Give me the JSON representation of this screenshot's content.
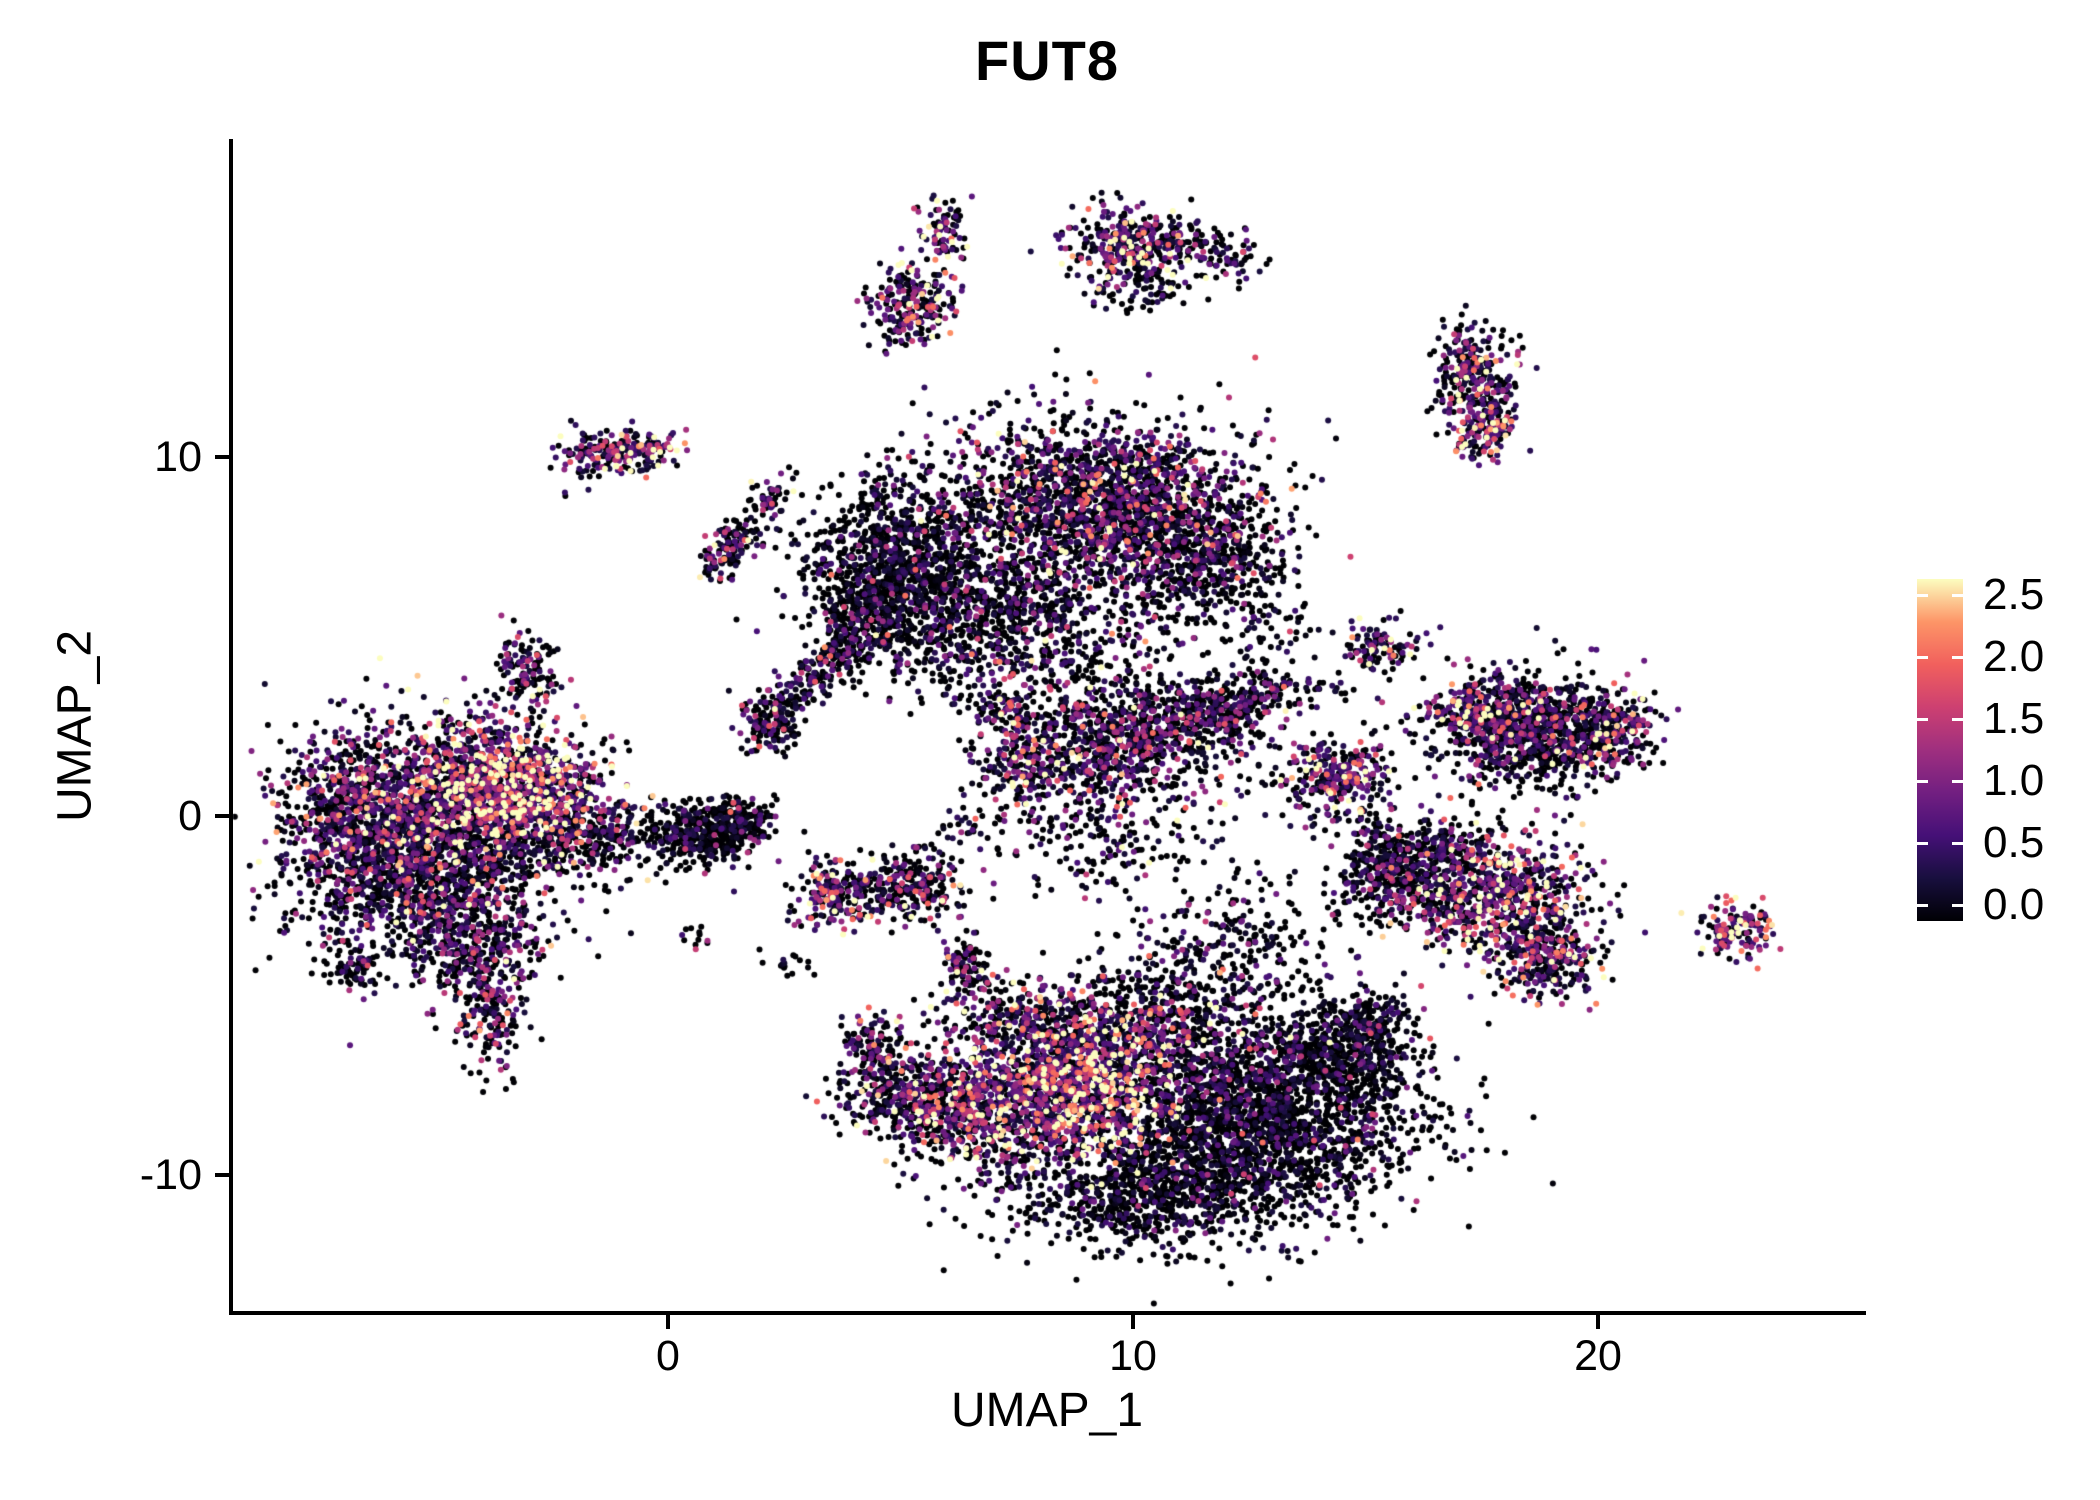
{
  "title": "FUT8",
  "chart_data": {
    "type": "scatter",
    "title": "FUT8",
    "xlabel": "UMAP_1",
    "ylabel": "UMAP_2",
    "xlim": [
      -9.4,
      25.7
    ],
    "ylim": [
      -13.8,
      18.8
    ],
    "grid": false,
    "x_ticks": [
      {
        "value": 0,
        "label": "0"
      },
      {
        "value": 10,
        "label": "10"
      },
      {
        "value": 20,
        "label": "20"
      }
    ],
    "y_ticks": [
      {
        "value": 10,
        "label": "10"
      },
      {
        "value": 0,
        "label": "0"
      },
      {
        "value": -10,
        "label": "-10"
      }
    ],
    "legend": {
      "position": "right",
      "range": [
        0,
        2.5
      ],
      "ticks": [
        {
          "value": 2.5,
          "label": "2.5"
        },
        {
          "value": 2.0,
          "label": "2.0"
        },
        {
          "value": 1.5,
          "label": "1.5"
        },
        {
          "value": 1.0,
          "label": "1.0"
        },
        {
          "value": 0.5,
          "label": "0.5"
        },
        {
          "value": 0.0,
          "label": "0.0"
        }
      ]
    },
    "colormap": {
      "name": "magma",
      "stops": [
        "#000004",
        "#180f3e",
        "#451077",
        "#721f81",
        "#9f2f7f",
        "#cd4071",
        "#f1605d",
        "#fd9567",
        "#fcfdbf"
      ]
    },
    "point_radius": 3,
    "seed": 7,
    "clusters": [
      {
        "x": -4.9,
        "y": 0.3,
        "sx": 1.5,
        "sy": 1.25,
        "n": 1700,
        "m": 0.8
      },
      {
        "x": -3.3,
        "y": 0.7,
        "sx": 0.95,
        "sy": 0.9,
        "n": 850,
        "m": 1.25
      },
      {
        "x": -5.8,
        "y": -1.8,
        "sx": 1.3,
        "sy": 1.0,
        "n": 850,
        "m": 0.55
      },
      {
        "x": -6.9,
        "y": 0.3,
        "sx": 0.6,
        "sy": 0.9,
        "n": 300,
        "m": 0.5
      },
      {
        "x": -4.2,
        "y": -3.4,
        "sx": 0.8,
        "sy": 0.8,
        "n": 380,
        "m": 0.65
      },
      {
        "x": -3.8,
        "y": -5.3,
        "sx": 0.4,
        "sy": 0.9,
        "n": 200,
        "m": 0.7
      },
      {
        "x": -1.6,
        "y": -0.6,
        "sx": 0.8,
        "sy": 0.6,
        "n": 300,
        "m": 0.4
      },
      {
        "x": -6.6,
        "y": -4.2,
        "sx": 0.3,
        "sy": 0.3,
        "n": 50,
        "m": 0.4
      },
      {
        "x": 0.8,
        "y": -0.5,
        "sx": 0.55,
        "sy": 0.45,
        "n": 380,
        "m": 0.3
      },
      {
        "x": 1.6,
        "y": -0.1,
        "sx": 0.35,
        "sy": 0.3,
        "n": 120,
        "m": 0.4
      },
      {
        "x": 2.2,
        "y": 2.5,
        "sx": 0.3,
        "sy": 0.4,
        "n": 120,
        "m": 0.6
      },
      {
        "type": "streak",
        "x1": 2.3,
        "y1": 2.9,
        "x2": 4.3,
        "y2": 5.1,
        "w": 0.28,
        "n": 240,
        "m": 0.55
      },
      {
        "x": 5.0,
        "y": 7.0,
        "sx": 1.1,
        "sy": 1.2,
        "n": 1100,
        "m": 0.35
      },
      {
        "x": 9.3,
        "y": 8.7,
        "sx": 1.6,
        "sy": 1.2,
        "n": 1900,
        "m": 0.65
      },
      {
        "x": 11.5,
        "y": 7.2,
        "sx": 0.9,
        "sy": 0.9,
        "n": 550,
        "m": 0.5
      },
      {
        "x": 7.3,
        "y": 5.6,
        "sx": 1.4,
        "sy": 0.8,
        "n": 550,
        "m": 0.5
      },
      {
        "x": 7.0,
        "y": 4.3,
        "sx": 1.5,
        "sy": 0.7,
        "n": 220,
        "m": 0.45
      },
      {
        "x": 4.2,
        "y": 5.6,
        "sx": 0.5,
        "sy": 0.6,
        "n": 150,
        "m": 0.45
      },
      {
        "x": 9.6,
        "y": 2.0,
        "sx": 1.25,
        "sy": 1.0,
        "n": 900,
        "m": 0.7
      },
      {
        "x": 11.6,
        "y": 2.9,
        "sx": 0.75,
        "sy": 0.6,
        "n": 300,
        "m": 0.6
      },
      {
        "type": "streak",
        "x1": 11.8,
        "y1": 2.6,
        "x2": 13.1,
        "y2": 3.8,
        "w": 0.25,
        "n": 140,
        "m": 0.6
      },
      {
        "x": 7.6,
        "y": 1.3,
        "sx": 0.45,
        "sy": 0.55,
        "n": 160,
        "m": 0.85
      },
      {
        "x": 7.3,
        "y": 2.9,
        "sx": 0.3,
        "sy": 0.35,
        "n": 80,
        "m": 0.6
      },
      {
        "x": 9.5,
        "y": -1.0,
        "sx": 1.2,
        "sy": 0.7,
        "n": 150,
        "m": 0.45
      },
      {
        "x": 3.7,
        "y": -2.2,
        "sx": 0.5,
        "sy": 0.45,
        "n": 230,
        "m": 0.85
      },
      {
        "x": 5.3,
        "y": -2.0,
        "sx": 0.55,
        "sy": 0.5,
        "n": 260,
        "m": 0.6
      },
      {
        "x": 6.4,
        "y": -4.2,
        "sx": 0.3,
        "sy": 0.4,
        "n": 100,
        "m": 0.7
      },
      {
        "x": 8.7,
        "y": -7.5,
        "sx": 1.15,
        "sy": 1.0,
        "n": 1300,
        "m": 1.15
      },
      {
        "x": 6.6,
        "y": -8.3,
        "sx": 0.9,
        "sy": 0.8,
        "n": 600,
        "m": 0.85
      },
      {
        "x": 5.0,
        "y": -7.8,
        "sx": 0.7,
        "sy": 0.6,
        "n": 300,
        "m": 0.7
      },
      {
        "x": 4.4,
        "y": -6.4,
        "sx": 0.35,
        "sy": 0.45,
        "n": 120,
        "m": 0.6
      },
      {
        "x": 12.6,
        "y": -8.4,
        "sx": 1.7,
        "sy": 1.4,
        "n": 2300,
        "m": 0.35
      },
      {
        "x": 10.2,
        "y": -10.5,
        "sx": 1.5,
        "sy": 0.8,
        "n": 800,
        "m": 0.3
      },
      {
        "x": 14.5,
        "y": -6.6,
        "sx": 0.8,
        "sy": 0.7,
        "n": 420,
        "m": 0.35
      },
      {
        "type": "streak",
        "x1": 14.7,
        "y1": -6.2,
        "x2": 15.4,
        "y2": -5.2,
        "w": 0.3,
        "n": 120,
        "m": 0.4
      },
      {
        "x": 10.2,
        "y": -6.0,
        "sx": 1.6,
        "sy": 0.6,
        "n": 420,
        "m": 0.7
      },
      {
        "x": 7.6,
        "y": -5.6,
        "sx": 0.9,
        "sy": 0.55,
        "n": 220,
        "m": 0.7
      },
      {
        "x": 12.3,
        "y": -3.6,
        "sx": 1.2,
        "sy": 1.0,
        "n": 260,
        "m": 0.4
      },
      {
        "x": 10.6,
        "y": -4.8,
        "sx": 0.9,
        "sy": 0.6,
        "n": 150,
        "m": 0.45
      },
      {
        "x": 14.4,
        "y": 1.1,
        "sx": 0.55,
        "sy": 0.55,
        "n": 320,
        "m": 1.0
      },
      {
        "x": 15.3,
        "y": -1.6,
        "sx": 0.5,
        "sy": 0.6,
        "n": 240,
        "m": 0.5
      },
      {
        "type": "streak",
        "x1": 14.9,
        "y1": 0.0,
        "x2": 16.2,
        "y2": -2.2,
        "w": 0.25,
        "n": 110,
        "m": 0.5
      },
      {
        "x": 18.5,
        "y": 2.3,
        "sx": 1.05,
        "sy": 0.75,
        "n": 950,
        "m": 0.5
      },
      {
        "x": 17.6,
        "y": 2.9,
        "sx": 0.7,
        "sy": 0.45,
        "n": 260,
        "m": 1.0
      },
      {
        "x": 20.2,
        "y": 2.4,
        "sx": 0.45,
        "sy": 0.5,
        "n": 180,
        "m": 0.9
      },
      {
        "x": 17.7,
        "y": -2.2,
        "sx": 1.0,
        "sy": 0.8,
        "n": 800,
        "m": 0.95
      },
      {
        "x": 18.9,
        "y": -3.9,
        "sx": 0.6,
        "sy": 0.6,
        "n": 300,
        "m": 0.8
      },
      {
        "x": 16.7,
        "y": -0.9,
        "sx": 0.5,
        "sy": 0.4,
        "n": 150,
        "m": 0.6
      },
      {
        "x": 23.0,
        "y": -3.2,
        "sx": 0.4,
        "sy": 0.4,
        "n": 140,
        "m": 1.1
      },
      {
        "x": 15.3,
        "y": 4.7,
        "sx": 0.45,
        "sy": 0.35,
        "n": 110,
        "m": 0.6
      },
      {
        "x": 12.9,
        "y": 5.0,
        "sx": 0.5,
        "sy": 0.4,
        "n": 50,
        "m": 0.5
      },
      {
        "x": 5.9,
        "y": 16.4,
        "sx": 0.25,
        "sy": 0.5,
        "n": 90,
        "m": 0.9
      },
      {
        "x": 5.2,
        "y": 14.2,
        "sx": 0.45,
        "sy": 0.55,
        "n": 240,
        "m": 0.85
      },
      {
        "x": 9.8,
        "y": 15.9,
        "sx": 0.6,
        "sy": 0.55,
        "n": 300,
        "m": 0.9
      },
      {
        "type": "streak",
        "x1": 10.5,
        "y1": 16.4,
        "x2": 12.5,
        "y2": 15.2,
        "w": 0.3,
        "n": 140,
        "m": 0.55
      },
      {
        "x": 10.2,
        "y": 14.6,
        "sx": 0.7,
        "sy": 0.4,
        "n": 70,
        "m": 0.4
      },
      {
        "x": 17.3,
        "y": 12.2,
        "sx": 0.45,
        "sy": 0.75,
        "n": 300,
        "m": 0.75
      },
      {
        "x": 17.5,
        "y": 10.8,
        "sx": 0.35,
        "sy": 0.5,
        "n": 150,
        "m": 1.1
      },
      {
        "x": -1.5,
        "y": 10.1,
        "sx": 0.45,
        "sy": 0.35,
        "n": 140,
        "m": 0.9
      },
      {
        "x": -0.5,
        "y": 10.2,
        "sx": 0.35,
        "sy": 0.3,
        "n": 110,
        "m": 1.2
      },
      {
        "type": "streak",
        "x1": 1.0,
        "y1": 6.8,
        "x2": 1.7,
        "y2": 8.2,
        "w": 0.22,
        "n": 130,
        "m": 0.7
      },
      {
        "x": 2.15,
        "y": 8.85,
        "sx": 0.25,
        "sy": 0.25,
        "n": 50,
        "m": 0.8
      },
      {
        "x": -3.05,
        "y": 4.1,
        "sx": 0.3,
        "sy": 0.5,
        "n": 130,
        "m": 0.7
      },
      {
        "x": -6.9,
        "y": -4.4,
        "sx": 0.2,
        "sy": 0.2,
        "n": 18,
        "m": 0.4
      },
      {
        "x": 2.4,
        "y": -4.1,
        "sx": 0.3,
        "sy": 0.2,
        "n": 16,
        "m": 0.5
      },
      {
        "x": 0.4,
        "y": -3.4,
        "sx": 0.25,
        "sy": 0.2,
        "n": 12,
        "m": 0.4
      },
      {
        "x": 6.5,
        "y": -0.5,
        "sx": 0.3,
        "sy": 0.3,
        "n": 25,
        "m": 0.5
      },
      {
        "x": 14.0,
        "y": 3.5,
        "sx": 0.4,
        "sy": 0.3,
        "n": 30,
        "m": 0.5
      }
    ]
  }
}
